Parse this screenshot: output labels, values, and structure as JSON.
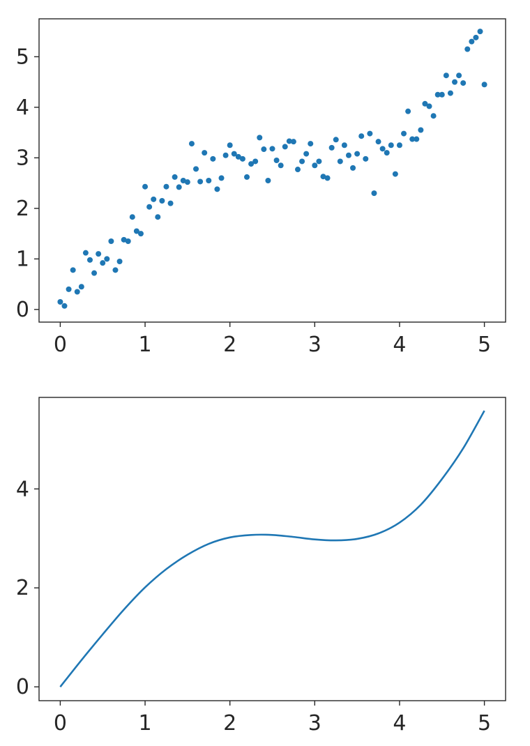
{
  "chart_data": [
    {
      "type": "scatter",
      "xlim": [
        -0.25,
        5.25
      ],
      "ylim": [
        -0.25,
        5.75
      ],
      "xticks": [
        0,
        1,
        2,
        3,
        4,
        5
      ],
      "yticks": [
        0,
        1,
        2,
        3,
        4,
        5
      ],
      "grid": false,
      "marker_color": "#1f77b4",
      "series": [
        {
          "x": [
            0.0,
            0.05,
            0.1,
            0.15,
            0.2,
            0.25,
            0.3,
            0.35,
            0.4,
            0.45,
            0.5,
            0.55,
            0.6,
            0.65,
            0.7,
            0.75,
            0.8,
            0.85,
            0.9,
            0.95,
            1.0,
            1.05,
            1.1,
            1.15,
            1.2,
            1.25,
            1.3,
            1.35,
            1.4,
            1.45,
            1.5,
            1.55,
            1.6,
            1.65,
            1.7,
            1.75,
            1.8,
            1.85,
            1.9,
            1.95,
            2.0,
            2.05,
            2.1,
            2.15,
            2.2,
            2.25,
            2.3,
            2.35,
            2.4,
            2.45,
            2.5,
            2.55,
            2.6,
            2.65,
            2.7,
            2.75,
            2.8,
            2.85,
            2.9,
            2.95,
            3.0,
            3.05,
            3.1,
            3.15,
            3.2,
            3.25,
            3.3,
            3.35,
            3.4,
            3.45,
            3.5,
            3.55,
            3.6,
            3.65,
            3.7,
            3.75,
            3.8,
            3.85,
            3.9,
            3.95,
            4.0,
            4.05,
            4.1,
            4.15,
            4.2,
            4.25,
            4.3,
            4.35,
            4.4,
            4.45,
            4.5,
            4.55,
            4.6,
            4.65,
            4.7,
            4.75,
            4.8,
            4.85,
            4.9,
            4.95,
            5.0
          ],
          "y": [
            0.15,
            0.07,
            0.4,
            0.78,
            0.35,
            0.45,
            1.12,
            0.98,
            0.72,
            1.1,
            0.92,
            1.0,
            1.35,
            0.78,
            0.95,
            1.38,
            1.35,
            1.83,
            1.55,
            1.5,
            2.43,
            2.03,
            2.18,
            1.83,
            2.15,
            2.43,
            2.1,
            2.62,
            2.42,
            2.55,
            2.52,
            3.28,
            2.78,
            2.53,
            3.1,
            2.55,
            2.98,
            2.38,
            2.6,
            3.05,
            3.25,
            3.08,
            3.02,
            2.98,
            2.62,
            2.88,
            2.93,
            3.4,
            3.17,
            2.55,
            3.18,
            2.95,
            2.85,
            3.22,
            3.33,
            3.32,
            2.77,
            2.93,
            3.08,
            3.28,
            2.85,
            2.93,
            2.63,
            2.6,
            3.2,
            3.36,
            2.93,
            3.25,
            3.05,
            2.8,
            3.08,
            3.43,
            2.98,
            3.48,
            2.3,
            3.32,
            3.18,
            3.1,
            3.25,
            2.68,
            3.25,
            3.48,
            3.92,
            3.37,
            3.37,
            3.55,
            4.07,
            4.02,
            3.83,
            4.25,
            4.25,
            4.63,
            4.28,
            4.5,
            4.63,
            4.48,
            5.15,
            5.3,
            5.38,
            5.5,
            4.45
          ]
        }
      ]
    },
    {
      "type": "line",
      "xlim": [
        -0.25,
        5.25
      ],
      "ylim": [
        -0.28,
        5.85
      ],
      "xticks": [
        0,
        1,
        2,
        3,
        4,
        5
      ],
      "yticks": [
        0,
        2,
        4
      ],
      "grid": false,
      "line_color": "#1f77b4",
      "series": [
        {
          "x": [
            0.0,
            0.25,
            0.5,
            0.75,
            1.0,
            1.25,
            1.5,
            1.75,
            2.0,
            2.25,
            2.5,
            2.75,
            3.0,
            3.25,
            3.5,
            3.75,
            4.0,
            4.25,
            4.5,
            4.75,
            5.0
          ],
          "y": [
            0.0,
            0.54,
            1.06,
            1.56,
            2.01,
            2.38,
            2.67,
            2.89,
            3.02,
            3.07,
            3.07,
            3.03,
            2.98,
            2.96,
            2.99,
            3.1,
            3.32,
            3.68,
            4.2,
            4.82,
            5.58
          ]
        }
      ]
    }
  ]
}
